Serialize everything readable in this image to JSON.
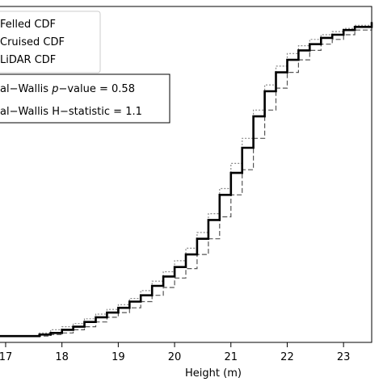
{
  "chart_data": {
    "type": "line",
    "xlabel": "Height (m)",
    "xlim": [
      16.9,
      23.5
    ],
    "ylim": [
      -0.02,
      1.05
    ],
    "x_ticks": [
      17,
      18,
      19,
      20,
      21,
      22,
      23
    ],
    "grid": false,
    "legend": {
      "placement": "top-left",
      "entries": [
        "Felled CDF",
        "Cruised CDF",
        "LiDAR CDF"
      ]
    },
    "stats_box": {
      "line1_prefix": "al−Wallis ",
      "line1_italic": "p",
      "line1_suffix": "−value = 0.58",
      "line2": "al−Wallis H−statistic = 1.1"
    },
    "series": [
      {
        "name": "Felled CDF",
        "style": "solid",
        "color": "#000000",
        "x": [
          16.9,
          17.2,
          17.4,
          17.6,
          17.8,
          18.0,
          18.2,
          18.4,
          18.6,
          18.8,
          19.0,
          19.2,
          19.4,
          19.6,
          19.8,
          20.0,
          20.2,
          20.4,
          20.6,
          20.8,
          21.0,
          21.2,
          21.4,
          21.6,
          21.8,
          22.0,
          22.2,
          22.4,
          22.6,
          22.8,
          23.0,
          23.2,
          23.5
        ],
        "y": [
          0.0,
          0.0,
          0.0,
          0.005,
          0.01,
          0.02,
          0.03,
          0.045,
          0.06,
          0.075,
          0.09,
          0.11,
          0.13,
          0.16,
          0.19,
          0.22,
          0.26,
          0.31,
          0.37,
          0.45,
          0.52,
          0.6,
          0.7,
          0.78,
          0.84,
          0.88,
          0.91,
          0.93,
          0.95,
          0.96,
          0.975,
          0.985,
          1.0
        ]
      },
      {
        "name": "Cruised CDF",
        "style": "dotted",
        "color": "#888888",
        "x": [
          16.9,
          17.2,
          17.4,
          17.6,
          17.8,
          18.0,
          18.2,
          18.4,
          18.6,
          18.8,
          19.0,
          19.2,
          19.4,
          19.6,
          19.8,
          20.0,
          20.2,
          20.4,
          20.6,
          20.8,
          21.0,
          21.2,
          21.4,
          21.6,
          21.8,
          22.0,
          22.2,
          22.4,
          22.6,
          22.8,
          23.0,
          23.2,
          23.5
        ],
        "y": [
          0.0,
          0.0,
          0.0,
          0.01,
          0.02,
          0.03,
          0.04,
          0.055,
          0.07,
          0.085,
          0.1,
          0.12,
          0.145,
          0.175,
          0.205,
          0.24,
          0.28,
          0.33,
          0.39,
          0.47,
          0.55,
          0.63,
          0.72,
          0.8,
          0.86,
          0.9,
          0.925,
          0.945,
          0.96,
          0.97,
          0.98,
          0.99,
          1.0
        ]
      },
      {
        "name": "LiDAR CDF",
        "style": "dashed",
        "color": "#555555",
        "x": [
          16.9,
          17.2,
          17.4,
          17.6,
          17.8,
          18.0,
          18.2,
          18.4,
          18.6,
          18.8,
          19.0,
          19.2,
          19.4,
          19.6,
          19.8,
          20.0,
          20.2,
          20.4,
          20.6,
          20.8,
          21.0,
          21.2,
          21.4,
          21.6,
          21.8,
          22.0,
          22.2,
          22.4,
          22.6,
          22.8,
          23.0,
          23.2,
          23.5
        ],
        "y": [
          0.0,
          0.0,
          0.0,
          0.0,
          0.005,
          0.01,
          0.02,
          0.03,
          0.045,
          0.06,
          0.075,
          0.09,
          0.11,
          0.13,
          0.155,
          0.185,
          0.215,
          0.26,
          0.31,
          0.38,
          0.45,
          0.53,
          0.63,
          0.72,
          0.79,
          0.84,
          0.88,
          0.91,
          0.93,
          0.945,
          0.96,
          0.975,
          1.0
        ]
      }
    ]
  }
}
